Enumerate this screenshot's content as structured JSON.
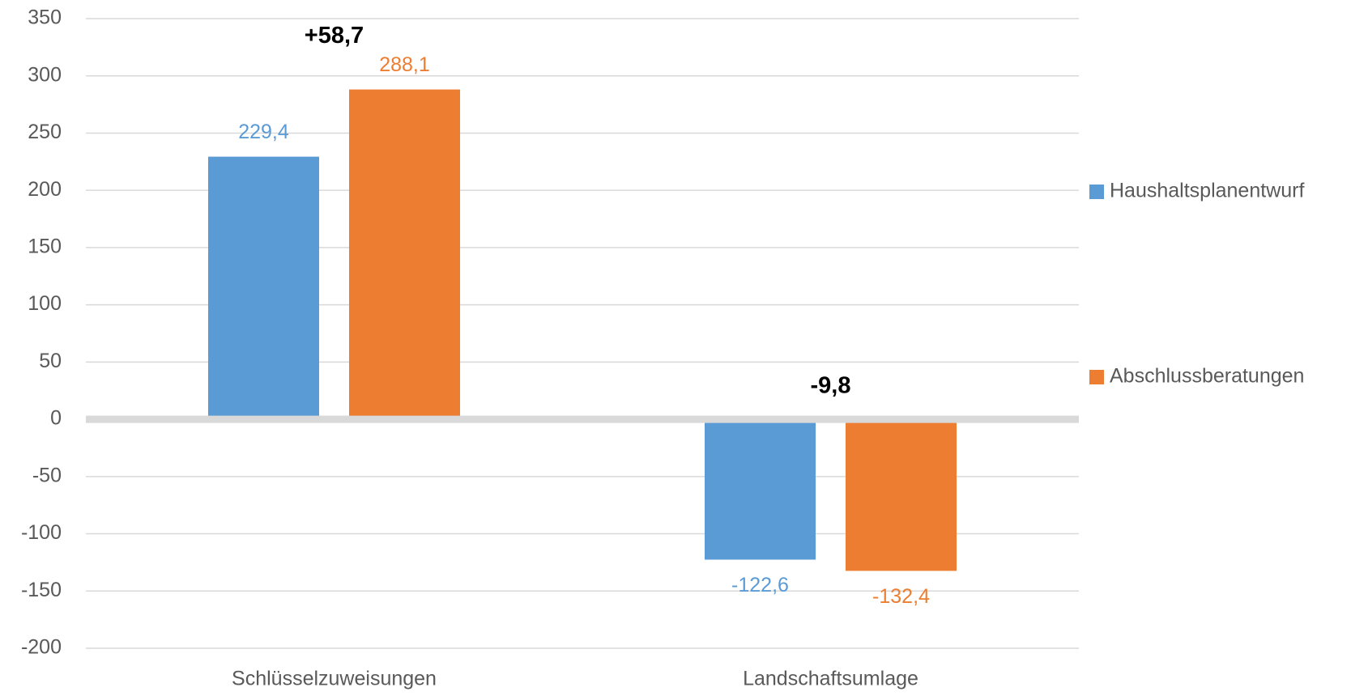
{
  "chart_data": {
    "type": "bar",
    "categories": [
      "Schlüsselzuweisungen",
      "Landschaftsumlage"
    ],
    "series": [
      {
        "name": "Haushaltsplanentwurf",
        "color": "#5b9bd5",
        "values": [
          229.4,
          -122.6
        ],
        "value_labels": [
          "229,4",
          "-122,6"
        ]
      },
      {
        "name": "Abschlussberatungen",
        "color": "#ed7d31",
        "values": [
          288.1,
          -132.4
        ],
        "value_labels": [
          "288,1",
          "-132,4"
        ]
      }
    ],
    "annotations": [
      "+58,7",
      "-9,8"
    ],
    "ylim": [
      -200,
      350
    ],
    "yticks": [
      -200,
      -150,
      -100,
      -50,
      0,
      50,
      100,
      150,
      200,
      250,
      300,
      350
    ],
    "grid": true,
    "legend": "right"
  }
}
